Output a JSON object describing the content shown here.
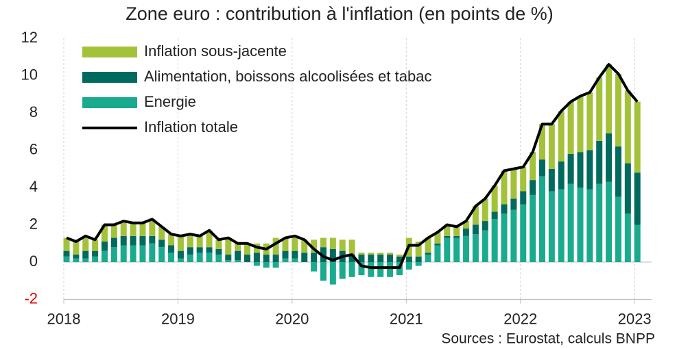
{
  "chart_data": {
    "type": "bar",
    "title": "Zone euro : contribution à l'inflation (en points de %)",
    "source": "Sources : Eurostat, calculs BNPP",
    "categories": [
      "2018",
      null,
      null,
      null,
      null,
      null,
      null,
      null,
      null,
      null,
      null,
      null,
      "2019",
      null,
      null,
      null,
      null,
      null,
      null,
      null,
      null,
      null,
      null,
      null,
      "2020",
      null,
      null,
      null,
      null,
      null,
      null,
      null,
      null,
      null,
      null,
      null,
      "2021",
      null,
      null,
      null,
      null,
      null,
      null,
      null,
      null,
      null,
      null,
      null,
      "2022",
      null,
      null,
      null,
      null,
      null,
      null,
      null,
      null,
      null,
      null,
      null,
      "2023"
    ],
    "ylim": [
      -2,
      12
    ],
    "yticks": [
      -2,
      0,
      2,
      4,
      6,
      8,
      10,
      12
    ],
    "negative_tick_color": "#e00000",
    "grid": true,
    "legend": "upper left",
    "series": [
      {
        "name": "Inflation sous-jacente",
        "type": "bar",
        "color": "#a3c23a",
        "values": [
          0.7,
          0.7,
          0.8,
          0.6,
          0.9,
          0.7,
          0.8,
          0.7,
          0.7,
          0.9,
          0.7,
          0.6,
          0.8,
          0.7,
          0.6,
          0.9,
          0.5,
          0.9,
          0.4,
          0.6,
          0.5,
          0.6,
          0.9,
          0.7,
          0.8,
          0.7,
          0.7,
          0.5,
          0.6,
          0.6,
          0.8,
          0.1,
          0.1,
          0.1,
          0.1,
          0.1,
          1.0,
          0.8,
          0.8,
          0.6,
          0.6,
          0.5,
          0.4,
          1.0,
          1.2,
          1.4,
          1.8,
          1.6,
          1.3,
          1.5,
          1.9,
          2.4,
          2.7,
          2.8,
          3.0,
          3.1,
          3.4,
          3.7,
          3.9,
          3.9,
          3.8
        ]
      },
      {
        "name": "Alimentation, boissons alcoolisées et tabac",
        "type": "bar",
        "color": "#006a5e",
        "values": [
          0.3,
          0.2,
          0.4,
          0.3,
          0.5,
          0.5,
          0.5,
          0.5,
          0.5,
          0.4,
          0.4,
          0.4,
          0.4,
          0.4,
          0.3,
          0.3,
          0.3,
          0.3,
          0.5,
          0.4,
          0.5,
          0.4,
          0.4,
          0.4,
          0.4,
          0.5,
          0.5,
          0.8,
          0.7,
          0.6,
          0.4,
          0.4,
          0.4,
          0.4,
          0.4,
          0.3,
          0.3,
          0.3,
          0.1,
          0.1,
          0.1,
          0.1,
          0.4,
          0.5,
          0.5,
          0.4,
          0.5,
          0.6,
          0.7,
          0.8,
          0.9,
          1.2,
          1.5,
          1.6,
          1.9,
          2.1,
          2.3,
          2.6,
          2.7,
          2.7,
          2.8
        ]
      },
      {
        "name": "Energie",
        "type": "bar",
        "color": "#1aab8f",
        "values": [
          0.3,
          0.2,
          0.2,
          0.3,
          0.6,
          0.8,
          0.9,
          0.9,
          0.9,
          1.0,
          0.8,
          0.5,
          0.2,
          0.4,
          0.5,
          0.5,
          0.4,
          0.1,
          0.1,
          0.0,
          -0.2,
          -0.3,
          -0.3,
          0.2,
          0.2,
          0.0,
          -0.5,
          -1.0,
          -1.2,
          -0.9,
          -0.8,
          -0.7,
          -0.8,
          -0.8,
          -0.8,
          -0.7,
          -0.4,
          -0.2,
          0.4,
          0.9,
          1.3,
          1.3,
          1.4,
          1.5,
          1.7,
          2.3,
          2.6,
          2.8,
          3.1,
          3.6,
          4.6,
          3.8,
          3.9,
          4.2,
          4.0,
          3.9,
          4.2,
          4.3,
          3.5,
          2.6,
          2.0
        ]
      },
      {
        "name": "Inflation totale",
        "type": "line",
        "color": "#000000",
        "values": [
          1.3,
          1.1,
          1.4,
          1.2,
          2.0,
          2.0,
          2.2,
          2.1,
          2.1,
          2.3,
          1.9,
          1.5,
          1.4,
          1.5,
          1.4,
          1.7,
          1.2,
          1.3,
          1.0,
          1.0,
          0.8,
          0.7,
          1.0,
          1.3,
          1.4,
          1.2,
          0.7,
          0.3,
          0.1,
          0.3,
          0.4,
          -0.2,
          -0.3,
          -0.3,
          -0.3,
          -0.3,
          0.9,
          0.9,
          1.3,
          1.6,
          2.0,
          1.9,
          2.2,
          3.0,
          3.4,
          4.1,
          4.9,
          5.0,
          5.1,
          5.9,
          7.4,
          7.4,
          8.1,
          8.6,
          8.9,
          9.1,
          9.9,
          10.6,
          10.1,
          9.2,
          8.6
        ]
      }
    ]
  }
}
